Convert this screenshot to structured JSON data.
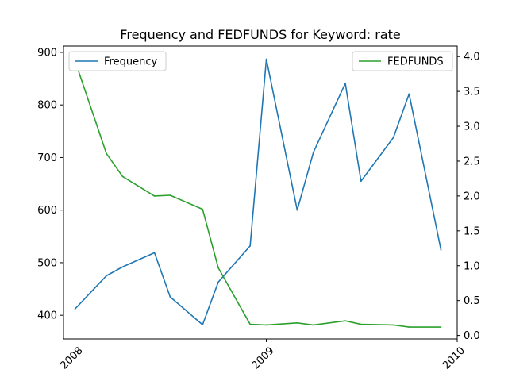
{
  "chart_data": {
    "type": "line",
    "title": "Frequency and FEDFUNDS for Keyword: rate",
    "xlabel": "",
    "x_tick_labels": [
      "2008",
      "2009",
      "2010"
    ],
    "x_ticks": [
      "2008-01-01",
      "2009-01-01",
      "2010-01-01"
    ],
    "xlim": [
      "2007-12-10",
      "2010-01-01"
    ],
    "left_axis": {
      "ylabel": "",
      "ylim": [
        355,
        912
      ],
      "ticks": [
        400,
        500,
        600,
        700,
        800,
        900
      ],
      "tick_labels": [
        "400",
        "500",
        "600",
        "700",
        "800",
        "900"
      ]
    },
    "right_axis": {
      "ylabel": "",
      "ylim": [
        -0.05,
        4.15
      ],
      "ticks": [
        0.0,
        0.5,
        1.0,
        1.5,
        2.0,
        2.5,
        3.0,
        3.5,
        4.0
      ],
      "tick_labels": [
        "0.0",
        "0.5",
        "1.0",
        "1.5",
        "2.0",
        "2.5",
        "3.0",
        "3.5",
        "4.0"
      ]
    },
    "series": [
      {
        "name": "Frequency",
        "axis": "left",
        "color": "#1f77b4",
        "x": [
          "2008-01-01",
          "2008-03-01",
          "2008-04-01",
          "2008-06-01",
          "2008-07-01",
          "2008-09-01",
          "2008-10-01",
          "2008-12-01",
          "2009-01-01",
          "2009-03-01",
          "2009-04-01",
          "2009-06-01",
          "2009-07-01",
          "2009-09-01",
          "2009-10-01",
          "2009-12-01"
        ],
        "values": [
          412,
          475,
          492,
          519,
          435,
          382,
          463,
          532,
          887,
          600,
          710,
          841,
          655,
          738,
          821,
          524
        ]
      },
      {
        "name": "FEDFUNDS",
        "axis": "right",
        "color": "#2ca02c",
        "x": [
          "2008-01-01",
          "2008-03-01",
          "2008-04-01",
          "2008-06-01",
          "2008-07-01",
          "2008-09-01",
          "2008-10-01",
          "2008-12-01",
          "2009-01-01",
          "2009-03-01",
          "2009-04-01",
          "2009-06-01",
          "2009-07-01",
          "2009-09-01",
          "2009-10-01",
          "2009-12-01"
        ],
        "values": [
          3.94,
          2.61,
          2.28,
          2.0,
          2.01,
          1.81,
          0.97,
          0.16,
          0.15,
          0.18,
          0.15,
          0.21,
          0.16,
          0.15,
          0.12,
          0.12
        ]
      }
    ],
    "legends": [
      {
        "placement": "upper-left",
        "entries": [
          "Frequency"
        ]
      },
      {
        "placement": "upper-right",
        "entries": [
          "FEDFUNDS"
        ]
      }
    ],
    "grid": false
  }
}
